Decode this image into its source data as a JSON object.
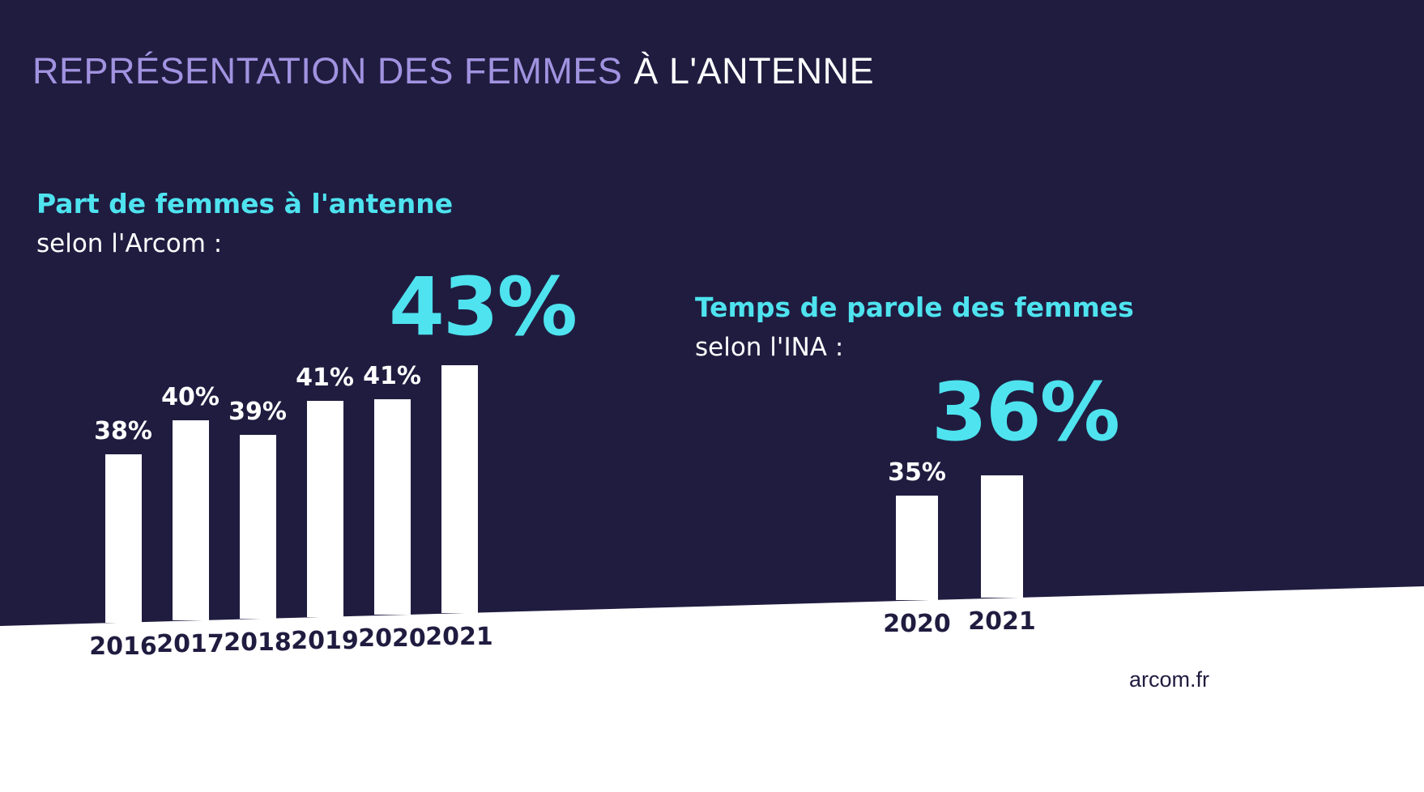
{
  "page": {
    "title_highlight": "REPRÉSENTATION DES FEMMES",
    "title_rest": "À L'ANTENNE",
    "footer": "arcom.fr"
  },
  "colors": {
    "background": "#201c40",
    "title_purple": "#a193e0",
    "accent_cyan": "#4ee3ef",
    "bar_white": "#ffffff",
    "dark_text_on_white": "#201c40"
  },
  "chart_data": [
    {
      "type": "bar",
      "title": "Part de femmes à l'antenne",
      "subtitle": "selon l'Arcom :",
      "categories": [
        "2016",
        "2017",
        "2018",
        "2019",
        "2020",
        "2021"
      ],
      "values": [
        38,
        40,
        39,
        41,
        41,
        43
      ],
      "unit": "%",
      "value_labels": [
        "38%",
        "40%",
        "39%",
        "41%",
        "41%",
        "43%"
      ],
      "highlight": {
        "category": "2021",
        "label": "43%"
      },
      "ylim": [
        0,
        50
      ],
      "legend": "none",
      "grid": false
    },
    {
      "type": "bar",
      "title": "Temps de parole des femmes",
      "subtitle": "selon l'INA :",
      "categories": [
        "2020",
        "2021"
      ],
      "values": [
        35,
        36
      ],
      "unit": "%",
      "value_labels": [
        "35%",
        "36%"
      ],
      "highlight": {
        "category": "2021",
        "label": "36%"
      },
      "ylim": [
        0,
        50
      ],
      "legend": "none",
      "grid": false
    }
  ]
}
